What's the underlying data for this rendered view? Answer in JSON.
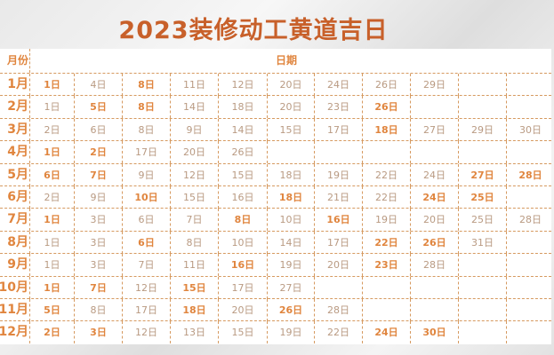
{
  "title": "2023装修动工黄道吉日",
  "header": {
    "month": "月份",
    "date": "日期"
  },
  "colors": {
    "accent": "#e0853e",
    "muted": "#b99a82",
    "title": "#c8602a"
  },
  "rows": [
    {
      "month": "1月",
      "days": [
        [
          "1日",
          1
        ],
        [
          "4日",
          0
        ],
        [
          "8日",
          1
        ],
        [
          "11日",
          0
        ],
        [
          "12日",
          0
        ],
        [
          "20日",
          0
        ],
        [
          "24日",
          0
        ],
        [
          "26日",
          0
        ],
        [
          "29日",
          0
        ]
      ]
    },
    {
      "month": "2月",
      "days": [
        [
          "1日",
          0
        ],
        [
          "5日",
          1
        ],
        [
          "8日",
          1
        ],
        [
          "14日",
          0
        ],
        [
          "18日",
          0
        ],
        [
          "20日",
          0
        ],
        [
          "23日",
          0
        ],
        [
          "26日",
          1
        ]
      ]
    },
    {
      "month": "3月",
      "days": [
        [
          "2日",
          0
        ],
        [
          "6日",
          0
        ],
        [
          "8日",
          0
        ],
        [
          "9日",
          0
        ],
        [
          "14日",
          0
        ],
        [
          "15日",
          0
        ],
        [
          "17日",
          0
        ],
        [
          "18日",
          1
        ],
        [
          "27日",
          0
        ],
        [
          "29日",
          0
        ],
        [
          "30日",
          0
        ]
      ]
    },
    {
      "month": "4月",
      "days": [
        [
          "1日",
          1
        ],
        [
          "2日",
          1
        ],
        [
          "17日",
          0
        ],
        [
          "20日",
          0
        ],
        [
          "26日",
          0
        ]
      ]
    },
    {
      "month": "5月",
      "days": [
        [
          "6日",
          1
        ],
        [
          "7日",
          1
        ],
        [
          "9日",
          0
        ],
        [
          "12日",
          0
        ],
        [
          "15日",
          0
        ],
        [
          "18日",
          0
        ],
        [
          "19日",
          0
        ],
        [
          "22日",
          0
        ],
        [
          "24日",
          0
        ],
        [
          "27日",
          1
        ],
        [
          "28日",
          1
        ]
      ]
    },
    {
      "month": "6月",
      "days": [
        [
          "2日",
          0
        ],
        [
          "9日",
          0
        ],
        [
          "10日",
          1
        ],
        [
          "15日",
          0
        ],
        [
          "16日",
          0
        ],
        [
          "18日",
          1
        ],
        [
          "21日",
          0
        ],
        [
          "22日",
          0
        ],
        [
          "24日",
          1
        ],
        [
          "25日",
          1
        ]
      ]
    },
    {
      "month": "7月",
      "days": [
        [
          "1日",
          1
        ],
        [
          "3日",
          0
        ],
        [
          "6日",
          0
        ],
        [
          "7日",
          0
        ],
        [
          "8日",
          1
        ],
        [
          "10日",
          0
        ],
        [
          "16日",
          1
        ],
        [
          "19日",
          0
        ],
        [
          "20日",
          0
        ],
        [
          "25日",
          0
        ],
        [
          "28日",
          0
        ]
      ]
    },
    {
      "month": "8月",
      "days": [
        [
          "1日",
          0
        ],
        [
          "3日",
          0
        ],
        [
          "6日",
          1
        ],
        [
          "8日",
          0
        ],
        [
          "10日",
          0
        ],
        [
          "14日",
          0
        ],
        [
          "17日",
          0
        ],
        [
          "22日",
          1
        ],
        [
          "26日",
          1
        ],
        [
          "31日",
          0
        ]
      ]
    },
    {
      "month": "9月",
      "days": [
        [
          "1日",
          0
        ],
        [
          "3日",
          0
        ],
        [
          "7日",
          0
        ],
        [
          "11日",
          0
        ],
        [
          "16日",
          1
        ],
        [
          "19日",
          0
        ],
        [
          "20日",
          0
        ],
        [
          "23日",
          1
        ],
        [
          "28日",
          0
        ]
      ]
    },
    {
      "month": "10月",
      "days": [
        [
          "1日",
          1
        ],
        [
          "7日",
          1
        ],
        [
          "12日",
          0
        ],
        [
          "15日",
          1
        ],
        [
          "17日",
          0
        ],
        [
          "27日",
          0
        ]
      ]
    },
    {
      "month": "11月",
      "days": [
        [
          "5日",
          1
        ],
        [
          "8日",
          0
        ],
        [
          "17日",
          0
        ],
        [
          "18日",
          1
        ],
        [
          "20日",
          0
        ],
        [
          "26日",
          1
        ],
        [
          "28日",
          0
        ]
      ]
    },
    {
      "month": "12月",
      "days": [
        [
          "2日",
          1
        ],
        [
          "3日",
          1
        ],
        [
          "12日",
          0
        ],
        [
          "13日",
          0
        ],
        [
          "15日",
          0
        ],
        [
          "19日",
          0
        ],
        [
          "22日",
          0
        ],
        [
          "24日",
          1
        ],
        [
          "30日",
          1
        ]
      ]
    }
  ]
}
